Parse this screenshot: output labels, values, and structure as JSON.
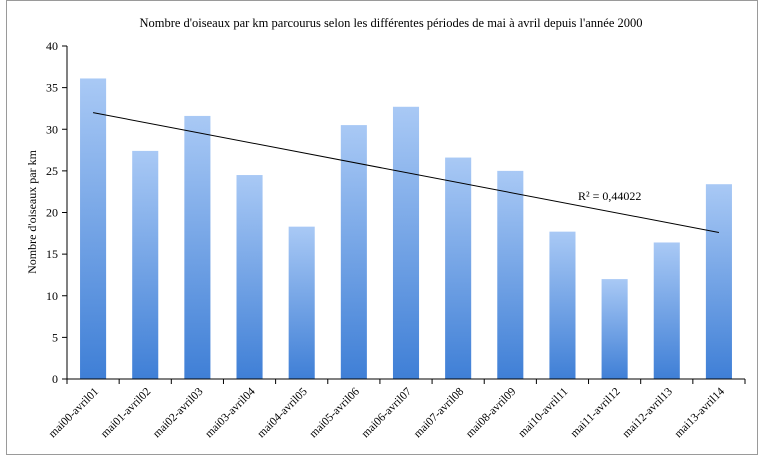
{
  "chart_data": {
    "type": "bar",
    "title": "Nombre d'oiseaux par km parcourus selon les différentes périodes de mai à avril depuis l'année 2000",
    "xlabel": "",
    "ylabel": "Nombre d'oiseaux par km",
    "ylim": [
      0,
      40
    ],
    "yticks": [
      0,
      5,
      10,
      15,
      20,
      25,
      30,
      35,
      40
    ],
    "grid": false,
    "categories": [
      "mai00-avril01",
      "mai01-avril02",
      "mai02-avril03",
      "mai03-avril04",
      "mai04-avril05",
      "mai05-avril06",
      "mai06-avril07",
      "mai07-avril08",
      "mai08-avril09",
      "mai10-avril11",
      "mai11-avril12",
      "mai12-avril13",
      "mai13-avril14"
    ],
    "values": [
      36.1,
      27.4,
      31.6,
      24.5,
      18.3,
      30.5,
      32.7,
      26.6,
      25.0,
      17.7,
      12.0,
      16.4,
      23.4
    ],
    "bar_color_top": "#a9c9f5",
    "bar_color_bottom": "#3f7fd6",
    "trendline": {
      "type": "linear",
      "start_value": 32.0,
      "end_value": 17.6,
      "color": "#000000",
      "r_squared_label": "R² = 0,44022"
    }
  }
}
